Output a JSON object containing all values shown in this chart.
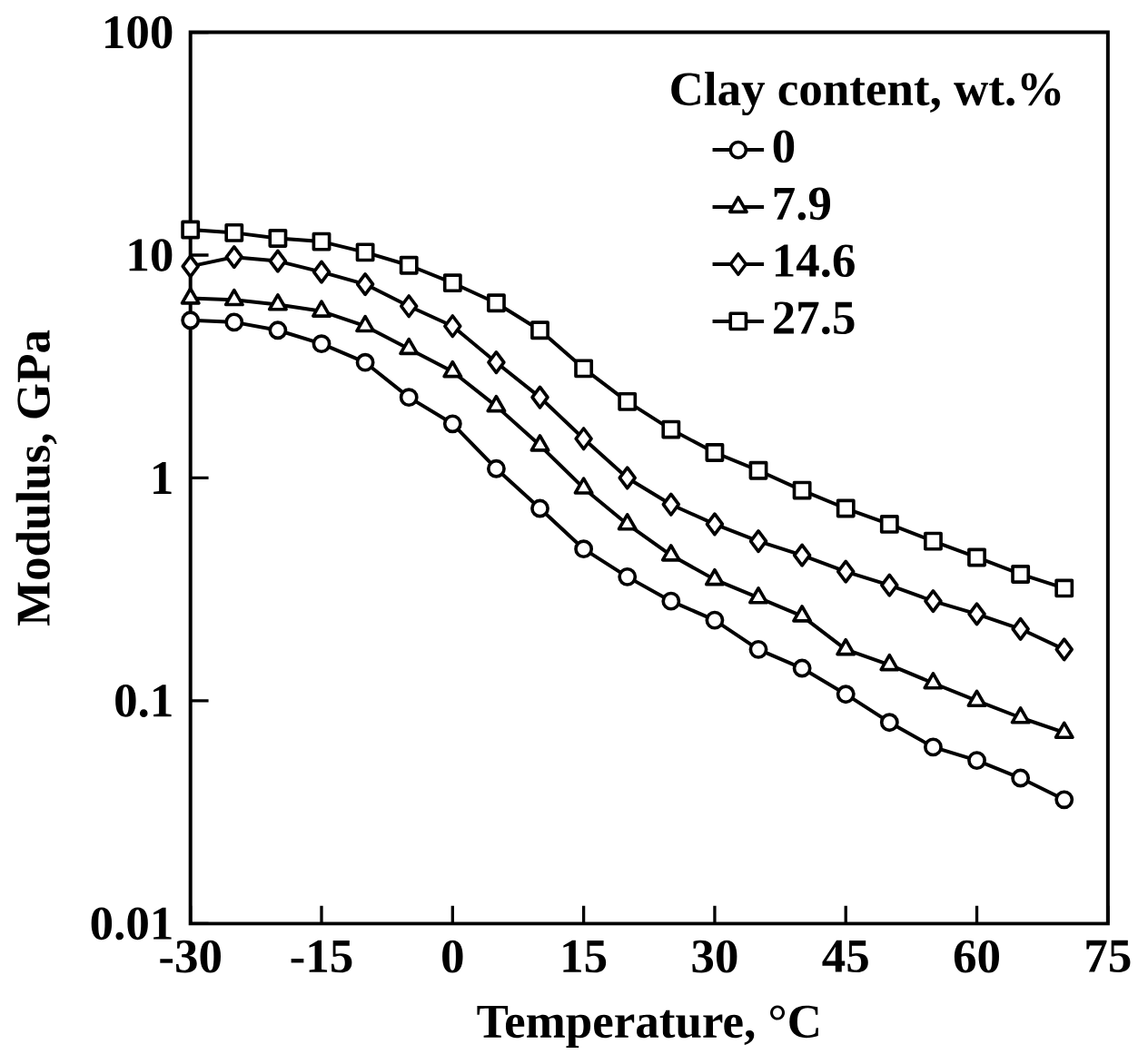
{
  "chart_data": {
    "type": "line",
    "xlabel": "Temperature, °C",
    "ylabel": "Modulus, GPa",
    "legend_title": "Clay content, wt.%",
    "log": "y",
    "grid": false,
    "legend": "top right",
    "line_style": "solid",
    "x": [
      -30,
      -25,
      -20,
      -15,
      -10,
      -5,
      0,
      5,
      10,
      15,
      20,
      25,
      30,
      35,
      40,
      45,
      50,
      55,
      60,
      65,
      70
    ],
    "xlim": [
      -30,
      75
    ],
    "xticks": [
      -30,
      -15,
      0,
      15,
      30,
      45,
      60,
      75
    ],
    "ylim": [
      0.01,
      100
    ],
    "yticks": [
      0.01,
      0.1,
      1,
      10,
      100
    ],
    "series": [
      {
        "name": "0",
        "color": "#000000",
        "marker": "circle",
        "values": [
          5.1,
          5.0,
          4.6,
          4.0,
          3.3,
          2.3,
          1.75,
          1.1,
          0.73,
          0.48,
          0.36,
          0.28,
          0.23,
          0.17,
          0.14,
          0.107,
          0.08,
          0.062,
          0.054,
          0.045,
          0.036
        ]
      },
      {
        "name": "7.9",
        "color": "#000000",
        "marker": "triangle",
        "values": [
          6.4,
          6.3,
          6.0,
          5.6,
          4.8,
          3.8,
          3.0,
          2.1,
          1.4,
          0.9,
          0.62,
          0.45,
          0.35,
          0.29,
          0.24,
          0.17,
          0.145,
          0.12,
          0.1,
          0.084,
          0.072
        ]
      },
      {
        "name": "14.6",
        "color": "#000000",
        "marker": "diamond",
        "values": [
          8.9,
          9.8,
          9.4,
          8.4,
          7.4,
          5.9,
          4.8,
          3.3,
          2.3,
          1.5,
          1.0,
          0.76,
          0.62,
          0.52,
          0.45,
          0.38,
          0.33,
          0.28,
          0.245,
          0.21,
          0.17
        ]
      },
      {
        "name": "27.5",
        "color": "#000000",
        "marker": "square",
        "values": [
          13,
          12.6,
          11.9,
          11.5,
          10.3,
          9.0,
          7.5,
          6.1,
          4.6,
          3.1,
          2.2,
          1.65,
          1.3,
          1.08,
          0.88,
          0.73,
          0.62,
          0.52,
          0.44,
          0.37,
          0.32
        ]
      }
    ]
  }
}
